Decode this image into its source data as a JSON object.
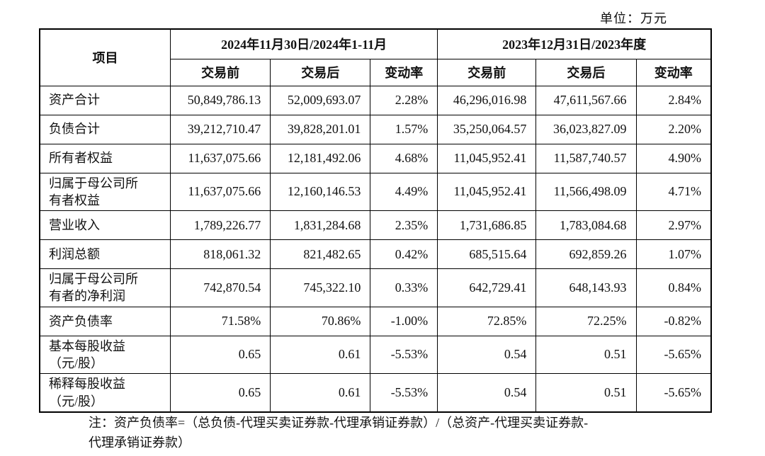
{
  "page": {
    "unit_label": "单位：万元",
    "note": "注：资产负债率=（总负债-代理买卖证券款-代理承销证券款）/（总资产-代理买卖证券款-\n代理承销证券款）"
  },
  "table": {
    "item_header": "项目",
    "groups": [
      {
        "label": "2024年11月30日/2024年1-11月",
        "columns": [
          "交易前",
          "交易后",
          "变动率"
        ]
      },
      {
        "label": "2023年12月31日/2023年度",
        "columns": [
          "交易前",
          "交易后",
          "变动率"
        ]
      }
    ],
    "rows": [
      {
        "label": "资产合计",
        "values": [
          "50,849,786.13",
          "52,009,693.07",
          "2.28%",
          "46,296,016.98",
          "47,611,567.66",
          "2.84%"
        ]
      },
      {
        "label": "负债合计",
        "values": [
          "39,212,710.47",
          "39,828,201.01",
          "1.57%",
          "35,250,064.57",
          "36,023,827.09",
          "2.20%"
        ]
      },
      {
        "label": "所有者权益",
        "values": [
          "11,637,075.66",
          "12,181,492.06",
          "4.68%",
          "11,045,952.41",
          "11,587,740.57",
          "4.90%"
        ]
      },
      {
        "label": "归属于母公司所\n有者权益",
        "values": [
          "11,637,075.66",
          "12,160,146.53",
          "4.49%",
          "11,045,952.41",
          "11,566,498.09",
          "4.71%"
        ]
      },
      {
        "label": "营业收入",
        "values": [
          "1,789,226.77",
          "1,831,284.68",
          "2.35%",
          "1,731,686.85",
          "1,783,084.68",
          "2.97%"
        ]
      },
      {
        "label": "利润总额",
        "values": [
          "818,061.32",
          "821,482.65",
          "0.42%",
          "685,515.64",
          "692,859.26",
          "1.07%"
        ]
      },
      {
        "label": "归属于母公司所\n有者的净利润",
        "values": [
          "742,870.54",
          "745,322.10",
          "0.33%",
          "642,729.41",
          "648,143.93",
          "0.84%"
        ]
      },
      {
        "label": "资产负债率",
        "values": [
          "71.58%",
          "70.86%",
          "-1.00%",
          "72.85%",
          "72.25%",
          "-0.82%"
        ]
      },
      {
        "label": "基本每股收益\n（元/股）",
        "values": [
          "0.65",
          "0.61",
          "-5.53%",
          "0.54",
          "0.51",
          "-5.65%"
        ]
      },
      {
        "label": "稀释每股收益\n（元/股）",
        "values": [
          "0.65",
          "0.61",
          "-5.53%",
          "0.54",
          "0.51",
          "-5.65%"
        ]
      }
    ]
  }
}
